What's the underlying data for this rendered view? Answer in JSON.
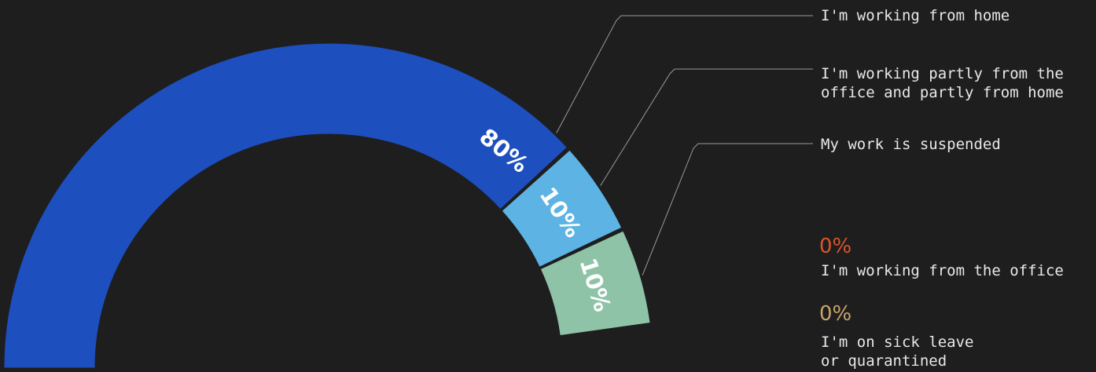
{
  "chart_data": {
    "type": "pie",
    "style": "half-donut",
    "segments": [
      {
        "name": "I'm working from home",
        "value": 80,
        "label": "80%",
        "color": "#1d4fbf"
      },
      {
        "name": "I'm working partly from the\noffice and partly from home",
        "value": 10,
        "label": "10%",
        "color": "#5cb3e4"
      },
      {
        "name": "My work is suspended",
        "value": 10,
        "label": "10%",
        "color": "#8fc3a8"
      }
    ],
    "zero_entries": [
      {
        "value_label": "0%",
        "name": "I'm working from the office",
        "color": "#d9552b"
      },
      {
        "value_label": "0%",
        "name": "I'm on sick leave\nor quarantined",
        "color": "#c9a36a"
      }
    ],
    "background": "#1e1e1e",
    "leader_line_color": "#9a9a9a"
  }
}
